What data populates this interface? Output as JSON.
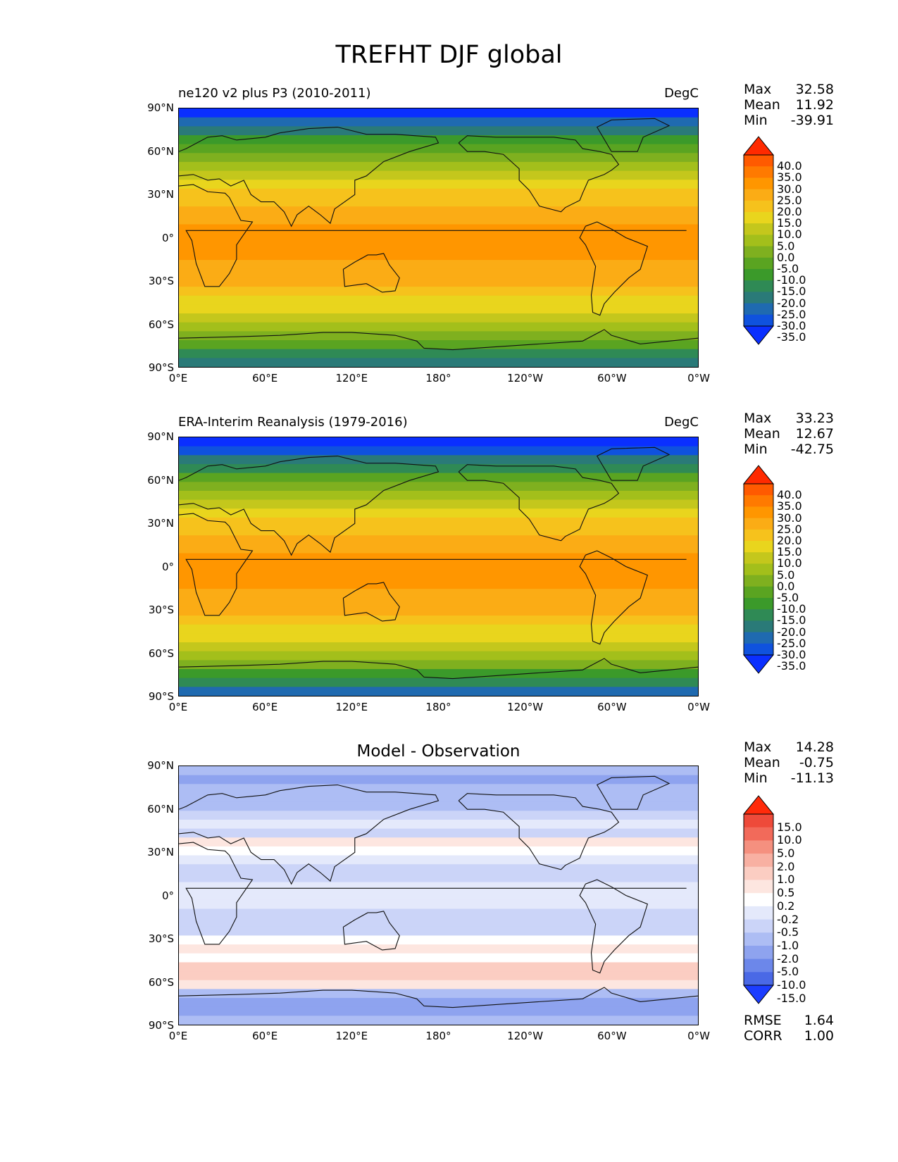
{
  "figure": {
    "title": "TREFHT DJF global"
  },
  "chart_data": [
    {
      "type": "heatmap",
      "title_left": "ne120 v2 plus P3 (2010-2011)",
      "title_right": "DegC",
      "xticks": [
        "0°E",
        "60°E",
        "120°E",
        "180°",
        "120°W",
        "60°W",
        "0°W"
      ],
      "yticks": [
        "90°N",
        "60°N",
        "30°N",
        "0°",
        "30°S",
        "60°S",
        "90°S"
      ],
      "xlim": [
        0,
        360
      ],
      "ylim": [
        -90,
        90
      ],
      "stats": [
        {
          "label": "Max",
          "value": "32.58"
        },
        {
          "label": "Mean",
          "value": "11.92"
        },
        {
          "label": "Min",
          "value": "-39.91"
        }
      ],
      "colorbar": {
        "levels": [
          "40.0",
          "35.0",
          "30.0",
          "25.0",
          "20.0",
          "15.0",
          "10.0",
          "5.0",
          "0.0",
          "-5.0",
          "-10.0",
          "-15.0",
          "-20.0",
          "-25.0",
          "-30.0",
          "-35.0"
        ],
        "colors": [
          "#ff2a00",
          "#ff5a00",
          "#ff7a00",
          "#ff9600",
          "#fbac15",
          "#f6c21c",
          "#e9d51d",
          "#c4c71c",
          "#a3bf1b",
          "#7fb01f",
          "#5aa421",
          "#3b9a2a",
          "#2f8a55",
          "#2a7a78",
          "#1f6ab0",
          "#0f52de",
          "#0a2fff"
        ],
        "extend": "both"
      },
      "bands": [
        -39,
        -30,
        -22,
        -15,
        -8,
        -2,
        3,
        8,
        12,
        16,
        19,
        22,
        24,
        25,
        26,
        26,
        25,
        24,
        23,
        21,
        18,
        14,
        10,
        6,
        2,
        -3,
        -10,
        -18,
        -25
      ]
    },
    {
      "type": "heatmap",
      "title_left": "ERA-Interim Reanalysis (1979-2016)",
      "title_right": "DegC",
      "xticks": [
        "0°E",
        "60°E",
        "120°E",
        "180°",
        "120°W",
        "60°W",
        "0°W"
      ],
      "yticks": [
        "90°N",
        "60°N",
        "30°N",
        "0°",
        "30°S",
        "60°S",
        "90°S"
      ],
      "xlim": [
        0,
        360
      ],
      "ylim": [
        -90,
        90
      ],
      "stats": [
        {
          "label": "Max",
          "value": "33.23"
        },
        {
          "label": "Mean",
          "value": "12.67"
        },
        {
          "label": "Min",
          "value": "-42.75"
        }
      ],
      "colorbar": {
        "levels": [
          "40.0",
          "35.0",
          "30.0",
          "25.0",
          "20.0",
          "15.0",
          "10.0",
          "5.0",
          "0.0",
          "-5.0",
          "-10.0",
          "-15.0",
          "-20.0",
          "-25.0",
          "-30.0",
          "-35.0"
        ],
        "colors": [
          "#ff2a00",
          "#ff5a00",
          "#ff7a00",
          "#ff9600",
          "#fbac15",
          "#f6c21c",
          "#e9d51d",
          "#c4c71c",
          "#a3bf1b",
          "#7fb01f",
          "#5aa421",
          "#3b9a2a",
          "#2f8a55",
          "#2a7a78",
          "#1f6ab0",
          "#0f52de",
          "#0a2fff"
        ],
        "extend": "both"
      },
      "bands": [
        -42,
        -32,
        -24,
        -16,
        -9,
        -3,
        2,
        7,
        12,
        16,
        19,
        22,
        24,
        25,
        26,
        26,
        25,
        24,
        23,
        21,
        18,
        14,
        10,
        6,
        2,
        -4,
        -11,
        -19,
        -26
      ]
    },
    {
      "type": "heatmap",
      "title_center": "Model - Observation",
      "xticks": [
        "0°E",
        "60°E",
        "120°E",
        "180°",
        "120°W",
        "60°W",
        "0°W"
      ],
      "yticks": [
        "90°N",
        "60°N",
        "30°N",
        "0°",
        "30°S",
        "60°S",
        "90°S"
      ],
      "xlim": [
        0,
        360
      ],
      "ylim": [
        -90,
        90
      ],
      "stats": [
        {
          "label": "Max",
          "value": "14.28"
        },
        {
          "label": "Mean",
          "value": "-0.75"
        },
        {
          "label": "Min",
          "value": "-11.13"
        }
      ],
      "colorbar": {
        "levels": [
          "15.0",
          "10.0",
          "5.0",
          "2.0",
          "1.0",
          "0.5",
          "0.2",
          "-0.2",
          "-0.5",
          "-1.0",
          "-2.0",
          "-5.0",
          "-10.0",
          "-15.0"
        ],
        "colors": [
          "#ff2a0a",
          "#ee4a3a",
          "#f26a5a",
          "#f5907f",
          "#f8b0a2",
          "#fbcdc2",
          "#fde6e0",
          "#ffffff",
          "#e4e9fb",
          "#cbd4f8",
          "#adbdf4",
          "#8ea3ef",
          "#6c87ea",
          "#4a69e6",
          "#1c3dff"
        ],
        "extend": "both"
      },
      "bands": [
        -2,
        -3,
        -2,
        -2,
        -1.5,
        -1,
        -0.5,
        -1,
        0.3,
        0.1,
        -0.3,
        -0.8,
        -0.6,
        -0.4,
        -0.3,
        -0.5,
        -0.8,
        -1,
        -0.6,
        -0.1,
        0.3,
        0.1,
        0.6,
        0.8,
        0.3,
        -2,
        -4,
        -3,
        -2
      ],
      "metrics": [
        {
          "label": "RMSE",
          "value": "1.64"
        },
        {
          "label": "CORR",
          "value": "1.00"
        }
      ]
    }
  ]
}
